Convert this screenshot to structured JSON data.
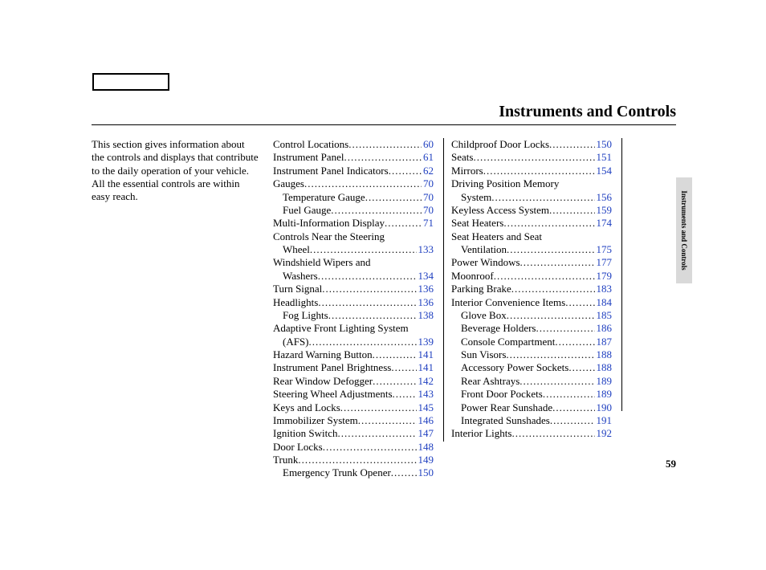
{
  "title": "Instruments and Controls",
  "intro": "This section gives information about the controls and displays that contribute to the daily operation of your vehicle. All the essential controls are within easy reach.",
  "sideTab": "Instruments and Controls",
  "pageNumber": "59",
  "linkColor": "#2040c0",
  "col1": [
    {
      "label": "Control Locations",
      "page": "60",
      "indent": 0
    },
    {
      "label": "Instrument Panel",
      "page": "61",
      "indent": 0
    },
    {
      "label": "Instrument Panel Indicators",
      "page": "62",
      "indent": 0
    },
    {
      "label": "Gauges",
      "page": "70",
      "indent": 0
    },
    {
      "label": "Temperature Gauge",
      "page": "70",
      "indent": 1
    },
    {
      "label": "Fuel Gauge",
      "page": "70",
      "indent": 1
    },
    {
      "label": "Multi-Information Display",
      "page": "71",
      "indent": 0
    },
    {
      "label": "Controls Near the Steering",
      "page": "",
      "indent": 0
    },
    {
      "label": "Wheel",
      "page": "133",
      "indent": 1
    },
    {
      "label": "Windshield Wipers and",
      "page": "",
      "indent": 0
    },
    {
      "label": "Washers",
      "page": "134",
      "indent": 1
    },
    {
      "label": "Turn Signal ",
      "page": "136",
      "indent": 0
    },
    {
      "label": "Headlights ",
      "page": "136",
      "indent": 0
    },
    {
      "label": "Fog Lights ",
      "page": "138",
      "indent": 1
    },
    {
      "label": "Adaptive Front Lighting System",
      "page": "",
      "indent": 0
    },
    {
      "label": "(AFS) ",
      "page": "139",
      "indent": 1
    },
    {
      "label": "Hazard Warning Button",
      "page": "141",
      "indent": 0
    },
    {
      "label": "Instrument Panel Brightness",
      "page": "141",
      "indent": 0
    },
    {
      "label": "Rear Window Defogger",
      "page": "142",
      "indent": 0
    },
    {
      "label": "Steering Wheel Adjustments",
      "page": "143",
      "indent": 0
    },
    {
      "label": "Keys and Locks",
      "page": "145",
      "indent": 0
    },
    {
      "label": "Immobilizer System",
      "page": "146",
      "indent": 0
    },
    {
      "label": "Ignition Switch",
      "page": "147",
      "indent": 0
    },
    {
      "label": "Door Locks",
      "page": "148",
      "indent": 0
    },
    {
      "label": "Trunk",
      "page": "149",
      "indent": 0
    },
    {
      "label": "Emergency Trunk Opener",
      "page": "150",
      "indent": 1
    }
  ],
  "col2": [
    {
      "label": "Childproof Door Locks",
      "page": "150",
      "indent": 0
    },
    {
      "label": "Seats",
      "page": "151",
      "indent": 0
    },
    {
      "label": "Mirrors",
      "page": "154",
      "indent": 0
    },
    {
      "label": "Driving Position Memory",
      "page": "",
      "indent": 0
    },
    {
      "label": "System",
      "page": "156",
      "indent": 1
    },
    {
      "label": "Keyless Access System",
      "page": "159",
      "indent": 0
    },
    {
      "label": "Seat Heaters",
      "page": "174",
      "indent": 0
    },
    {
      "label": "Seat Heaters and Seat",
      "page": "",
      "indent": 0
    },
    {
      "label": "Ventilation",
      "page": "175",
      "indent": 1
    },
    {
      "label": "Power Windows",
      "page": "177",
      "indent": 0
    },
    {
      "label": "Moonroof",
      "page": "179",
      "indent": 0
    },
    {
      "label": "Parking Brake",
      "page": "183",
      "indent": 0
    },
    {
      "label": "Interior Convenience Items",
      "page": "184",
      "indent": 0
    },
    {
      "label": "Glove Box",
      "page": "185",
      "indent": 1
    },
    {
      "label": "Beverage Holders",
      "page": "186",
      "indent": 1
    },
    {
      "label": "Console Compartment",
      "page": "187",
      "indent": 1
    },
    {
      "label": "Sun Visors",
      "page": "188",
      "indent": 1
    },
    {
      "label": "Accessory Power Sockets",
      "page": "188",
      "indent": 1
    },
    {
      "label": "Rear Ashtrays",
      "page": "189",
      "indent": 1
    },
    {
      "label": "Front Door Pockets",
      "page": "189",
      "indent": 1
    },
    {
      "label": "Power Rear Sunshade",
      "page": "190",
      "indent": 1
    },
    {
      "label": "Integrated Sunshades",
      "page": "191",
      "indent": 1
    },
    {
      "label": "Interior Lights",
      "page": "192",
      "indent": 0
    }
  ]
}
